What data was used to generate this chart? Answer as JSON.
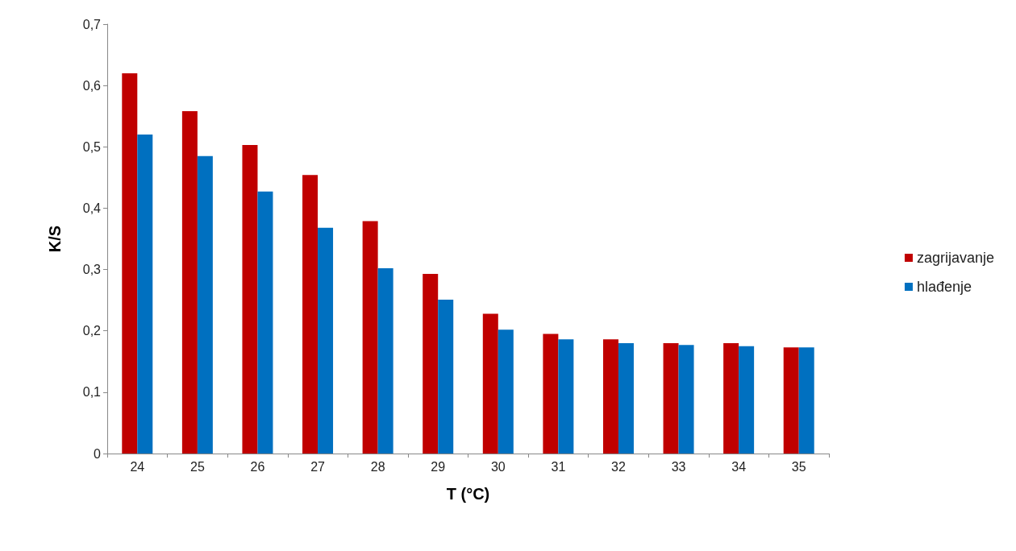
{
  "chart_data": {
    "type": "bar",
    "xlabel": "T (°C)",
    "ylabel": "K/S",
    "categories": [
      "24",
      "25",
      "26",
      "27",
      "28",
      "29",
      "30",
      "31",
      "32",
      "33",
      "34",
      "35"
    ],
    "series": [
      {
        "name": "zagrijavanje",
        "color": "#c00000",
        "values": [
          0.62,
          0.558,
          0.503,
          0.454,
          0.379,
          0.293,
          0.228,
          0.195,
          0.186,
          0.18,
          0.18,
          0.173
        ]
      },
      {
        "name": "hlađenje",
        "color": "#0070c0",
        "values": [
          0.52,
          0.485,
          0.427,
          0.368,
          0.302,
          0.251,
          0.202,
          0.186,
          0.18,
          0.177,
          0.175,
          0.173
        ]
      }
    ],
    "ylim": [
      0,
      0.7
    ],
    "yticks": [
      0,
      {
        "value": 0.1,
        "label": "0,1"
      },
      {
        "value": 0.2,
        "label": "0,2"
      },
      {
        "value": 0.3,
        "label": "0,3"
      },
      {
        "value": 0.4,
        "label": "0,4"
      },
      {
        "value": 0.5,
        "label": "0,5"
      },
      {
        "value": 0.6,
        "label": "0,6"
      },
      {
        "value": 0.7,
        "label": "0,7"
      }
    ],
    "grid": false,
    "legend": "right"
  }
}
